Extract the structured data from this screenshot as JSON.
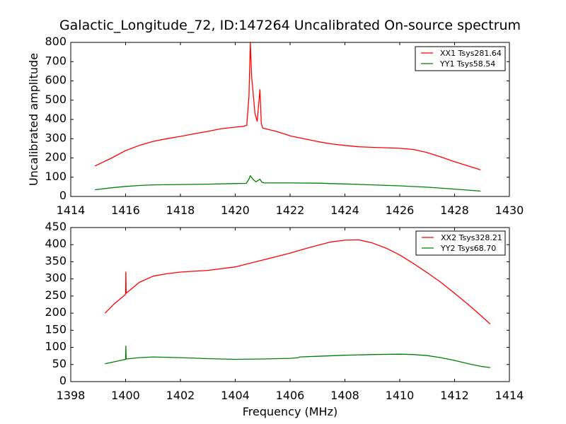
{
  "chart_data": [
    {
      "type": "line",
      "title": "Galactic_Longitude_72, ID:147264 Uncalibrated On-source spectrum",
      "xlabel": "",
      "ylabel": "Uncalibrated amplitude",
      "xlim": [
        1414,
        1430
      ],
      "ylim": [
        0,
        800
      ],
      "xticks": [
        1414,
        1416,
        1418,
        1420,
        1422,
        1424,
        1426,
        1428,
        1430
      ],
      "yticks": [
        0,
        100,
        200,
        300,
        400,
        500,
        600,
        700,
        800
      ],
      "grid": false,
      "legend_position": "top-right",
      "series": [
        {
          "name": "XX1 Tsys281.64",
          "color": "#ff0000",
          "x": [
            1414.88,
            1415.5,
            1416,
            1416.5,
            1417,
            1417.5,
            1418,
            1418.5,
            1419,
            1419.5,
            1420,
            1420.3,
            1420.42,
            1420.5,
            1420.55,
            1420.6,
            1420.65,
            1420.72,
            1420.8,
            1420.85,
            1420.9,
            1420.95,
            1421.0,
            1421.5,
            1422,
            1422.5,
            1423,
            1423.5,
            1424,
            1424.5,
            1425,
            1425.5,
            1426,
            1426.5,
            1427,
            1427.5,
            1428,
            1428.5,
            1428.95
          ],
          "y": [
            158,
            200,
            238,
            265,
            286,
            300,
            312,
            325,
            338,
            352,
            360,
            364,
            370,
            520,
            800,
            620,
            540,
            430,
            390,
            470,
            555,
            380,
            355,
            338,
            315,
            300,
            285,
            273,
            265,
            258,
            255,
            253,
            250,
            244,
            228,
            205,
            180,
            158,
            138
          ]
        },
        {
          "name": "YY1 Tsys58.54",
          "color": "#008000",
          "x": [
            1414.88,
            1415.5,
            1416,
            1416.5,
            1417,
            1418,
            1419,
            1420,
            1420.4,
            1420.5,
            1420.55,
            1420.65,
            1420.75,
            1420.85,
            1420.9,
            1420.97,
            1421.05,
            1422,
            1423,
            1424,
            1425,
            1426,
            1427,
            1428,
            1428.95
          ],
          "y": [
            35,
            45,
            52,
            57,
            60,
            62,
            64,
            67,
            68,
            90,
            108,
            88,
            76,
            84,
            90,
            74,
            70,
            70,
            69,
            65,
            60,
            55,
            48,
            38,
            28
          ]
        }
      ]
    },
    {
      "type": "line",
      "title": "",
      "xlabel": "Frequency (MHz)",
      "ylabel": "",
      "xlim": [
        1398,
        1414
      ],
      "ylim": [
        0,
        450
      ],
      "xticks": [
        1398,
        1400,
        1402,
        1404,
        1406,
        1408,
        1410,
        1412,
        1414
      ],
      "yticks": [
        0,
        50,
        100,
        150,
        200,
        250,
        300,
        350,
        400,
        450
      ],
      "grid": false,
      "legend_position": "top-right",
      "series": [
        {
          "name": "XX2 Tsys328.21",
          "color": "#ff0000",
          "x": [
            1399.25,
            1399.6,
            1400,
            1400.01,
            1400.02,
            1400.5,
            1401,
            1401.5,
            1402,
            1403,
            1404,
            1405,
            1406,
            1406.5,
            1407,
            1407.5,
            1408,
            1408.5,
            1409,
            1409.5,
            1410,
            1410.5,
            1411,
            1411.5,
            1412,
            1412.5,
            1413,
            1413.3
          ],
          "y": [
            200,
            228,
            255,
            320,
            258,
            290,
            308,
            315,
            320,
            325,
            335,
            355,
            375,
            387,
            398,
            408,
            413,
            414,
            405,
            390,
            370,
            345,
            318,
            290,
            258,
            225,
            190,
            168
          ]
        },
        {
          "name": "YY2 Tsys68.70",
          "color": "#008000",
          "x": [
            1399.25,
            1399.6,
            1400,
            1400.01,
            1400.02,
            1400.5,
            1401,
            1402,
            1403,
            1404,
            1405,
            1406,
            1406.3,
            1406.35,
            1407,
            1408,
            1409,
            1410,
            1410.5,
            1411,
            1411.5,
            1412,
            1412.5,
            1413,
            1413.3
          ],
          "y": [
            52,
            58,
            65,
            104,
            66,
            70,
            72,
            70,
            67,
            65,
            66,
            68,
            70,
            72,
            74,
            77,
            79,
            80,
            79,
            76,
            70,
            62,
            52,
            44,
            41
          ]
        }
      ]
    }
  ]
}
